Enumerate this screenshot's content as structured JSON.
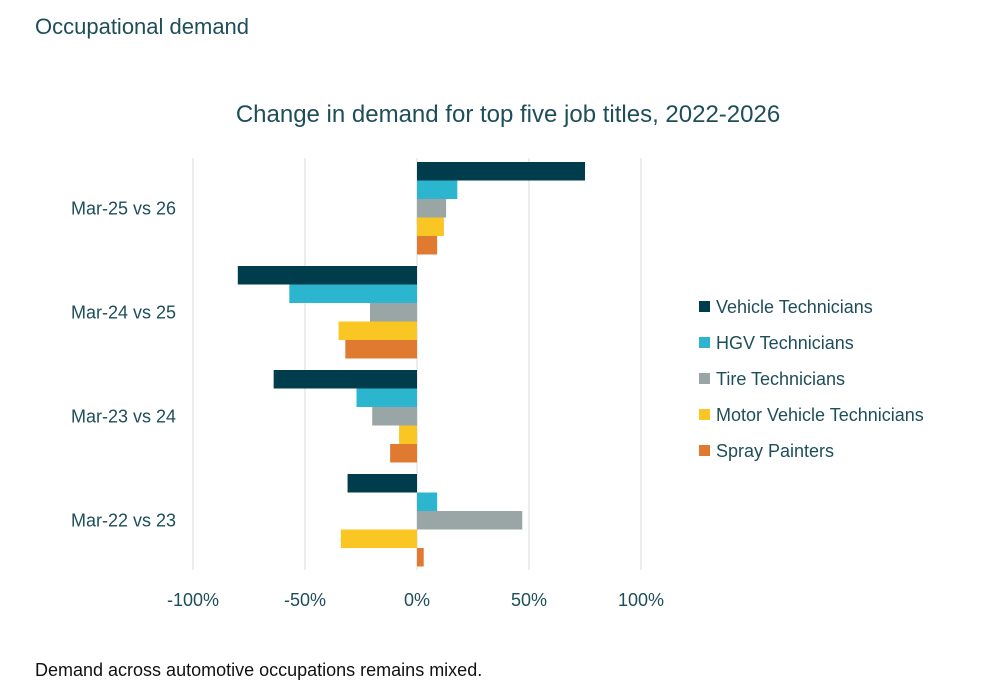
{
  "page": {
    "heading": "Occupational demand",
    "caption": "Demand across automotive occupations remains mixed."
  },
  "chart_data": {
    "type": "bar",
    "orientation": "horizontal",
    "title": "Change in demand for top five job titles, 2022-2026",
    "categories": [
      "Mar-25 vs 26",
      "Mar-24 vs 25",
      "Mar-23 vs 24",
      "Mar-22 vs 23"
    ],
    "series": [
      {
        "name": "Vehicle Technicians",
        "color": "#003d4c",
        "values": [
          75,
          -80,
          -64,
          -31
        ]
      },
      {
        "name": "HGV Technicians",
        "color": "#2bb5cf",
        "values": [
          18,
          -57,
          -27,
          9
        ]
      },
      {
        "name": "Tire Technicians",
        "color": "#9aa5a5",
        "values": [
          13,
          -21,
          -20,
          47
        ]
      },
      {
        "name": "Motor Vehicle Technicians",
        "color": "#f9c623",
        "values": [
          12,
          -35,
          -8,
          -34
        ]
      },
      {
        "name": "Spray Painters",
        "color": "#e07a30",
        "values": [
          9,
          -32,
          -12,
          3
        ]
      }
    ],
    "xlim": [
      -100,
      100
    ],
    "xticks": [
      -100,
      -50,
      0,
      50,
      100
    ],
    "xtick_labels": [
      "-100%",
      "-50%",
      "0%",
      "50%",
      "100%"
    ],
    "xlabel": "",
    "ylabel": "",
    "grid": "vertical",
    "legend": "right"
  }
}
